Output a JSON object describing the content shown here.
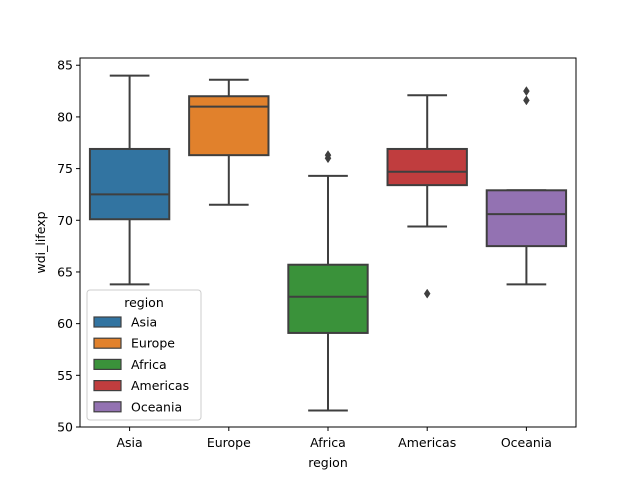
{
  "chart_data": {
    "type": "boxplot",
    "xlabel": "region",
    "ylabel": "wdi_lifexp",
    "ylim": [
      50,
      85.7
    ],
    "yticks": [
      50,
      55,
      60,
      65,
      70,
      75,
      80,
      85
    ],
    "categories": [
      "Asia",
      "Europe",
      "Africa",
      "Americas",
      "Oceania"
    ],
    "series": [
      {
        "name": "Asia",
        "color": "#3274a1",
        "whisker_low": 63.8,
        "q1": 70.1,
        "median": 72.5,
        "q3": 76.9,
        "whisker_high": 84.0,
        "outliers": []
      },
      {
        "name": "Europe",
        "color": "#e1812c",
        "whisker_low": 71.5,
        "q1": 76.3,
        "median": 81.0,
        "q3": 82.0,
        "whisker_high": 83.6,
        "outliers": []
      },
      {
        "name": "Africa",
        "color": "#3a923a",
        "whisker_low": 51.6,
        "q1": 59.1,
        "median": 62.6,
        "q3": 65.7,
        "whisker_high": 74.3,
        "outliers": [
          76.0,
          76.3
        ]
      },
      {
        "name": "Americas",
        "color": "#c03d3e",
        "whisker_low": 69.4,
        "q1": 73.4,
        "median": 74.7,
        "q3": 76.9,
        "whisker_high": 82.1,
        "outliers": [
          62.9
        ]
      },
      {
        "name": "Oceania",
        "color": "#9372b2",
        "whisker_low": 63.8,
        "q1": 67.5,
        "median": 70.6,
        "q3": 72.9,
        "whisker_high": 72.9,
        "outliers": [
          81.6,
          82.5
        ]
      }
    ],
    "legend": {
      "title": "region",
      "position": "lower-left"
    },
    "grid": false
  }
}
